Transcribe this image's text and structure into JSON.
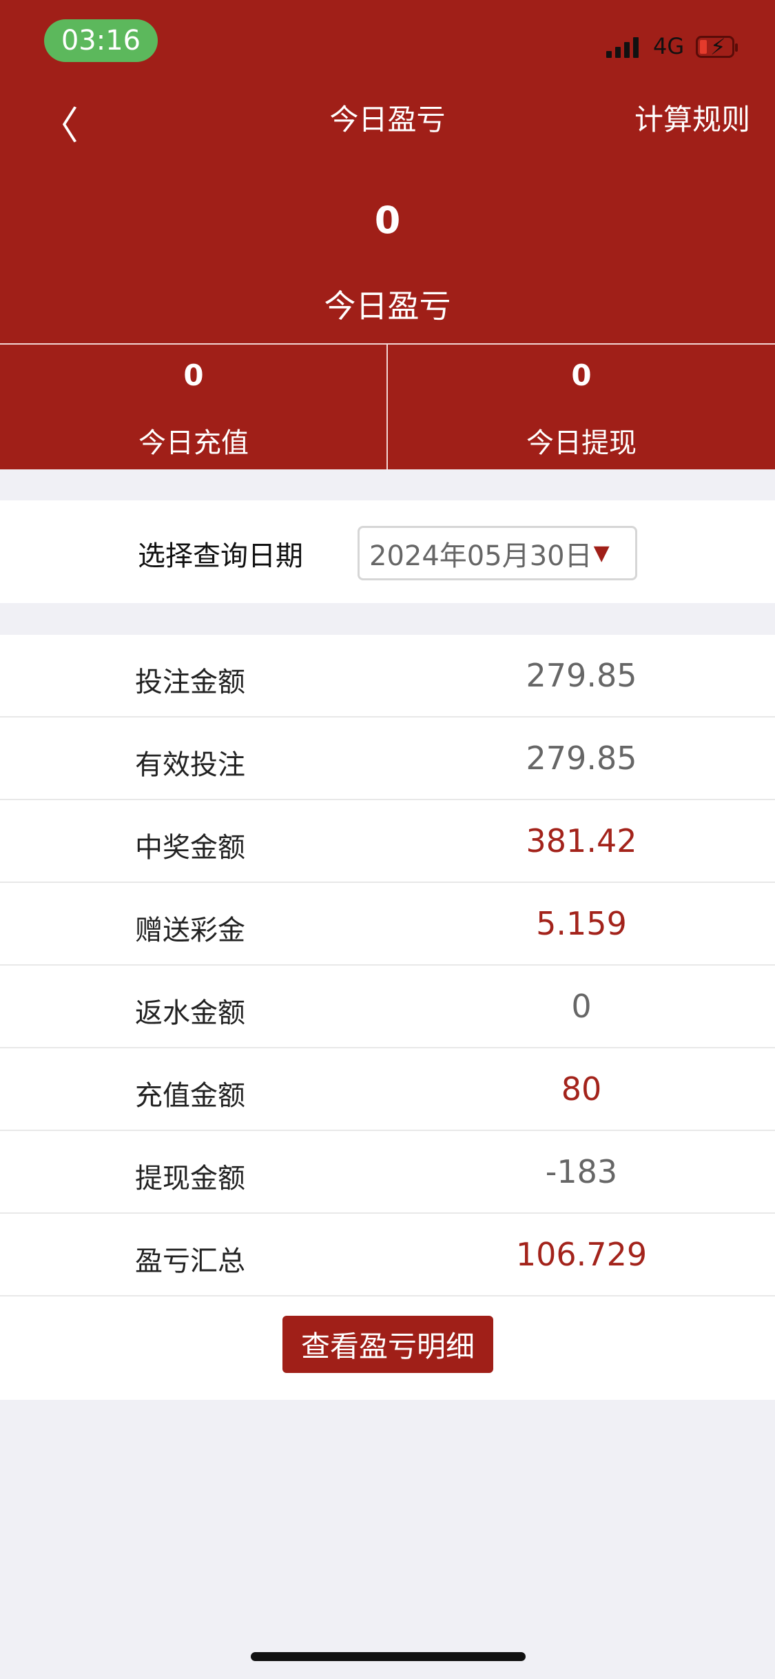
{
  "status_bar": {
    "time": "03:16",
    "network": "4G"
  },
  "nav": {
    "title": "今日盈亏",
    "rules_label": "计算规则"
  },
  "summary": {
    "value": "0",
    "label": "今日盈亏"
  },
  "stats": [
    {
      "value": "0",
      "label": "今日充值"
    },
    {
      "value": "0",
      "label": "今日提现"
    }
  ],
  "date_filter": {
    "label": "选择查询日期",
    "value": "2024年05月30日"
  },
  "rows": [
    {
      "label": "投注金额",
      "value": "279.85",
      "highlight": false
    },
    {
      "label": "有效投注",
      "value": "279.85",
      "highlight": false
    },
    {
      "label": "中奖金额",
      "value": "381.42",
      "highlight": true
    },
    {
      "label": "赠送彩金",
      "value": "5.159",
      "highlight": true
    },
    {
      "label": "返水金额",
      "value": "0",
      "highlight": false
    },
    {
      "label": "充值金额",
      "value": "80",
      "highlight": true
    },
    {
      "label": "提现金额",
      "value": "-183",
      "highlight": false
    },
    {
      "label": "盈亏汇总",
      "value": "106.729",
      "highlight": true
    }
  ],
  "detail_button": "查看盈亏明细",
  "colors": {
    "brand": "#a01f18",
    "highlight": "#a3231b",
    "neutral": "#666666"
  }
}
